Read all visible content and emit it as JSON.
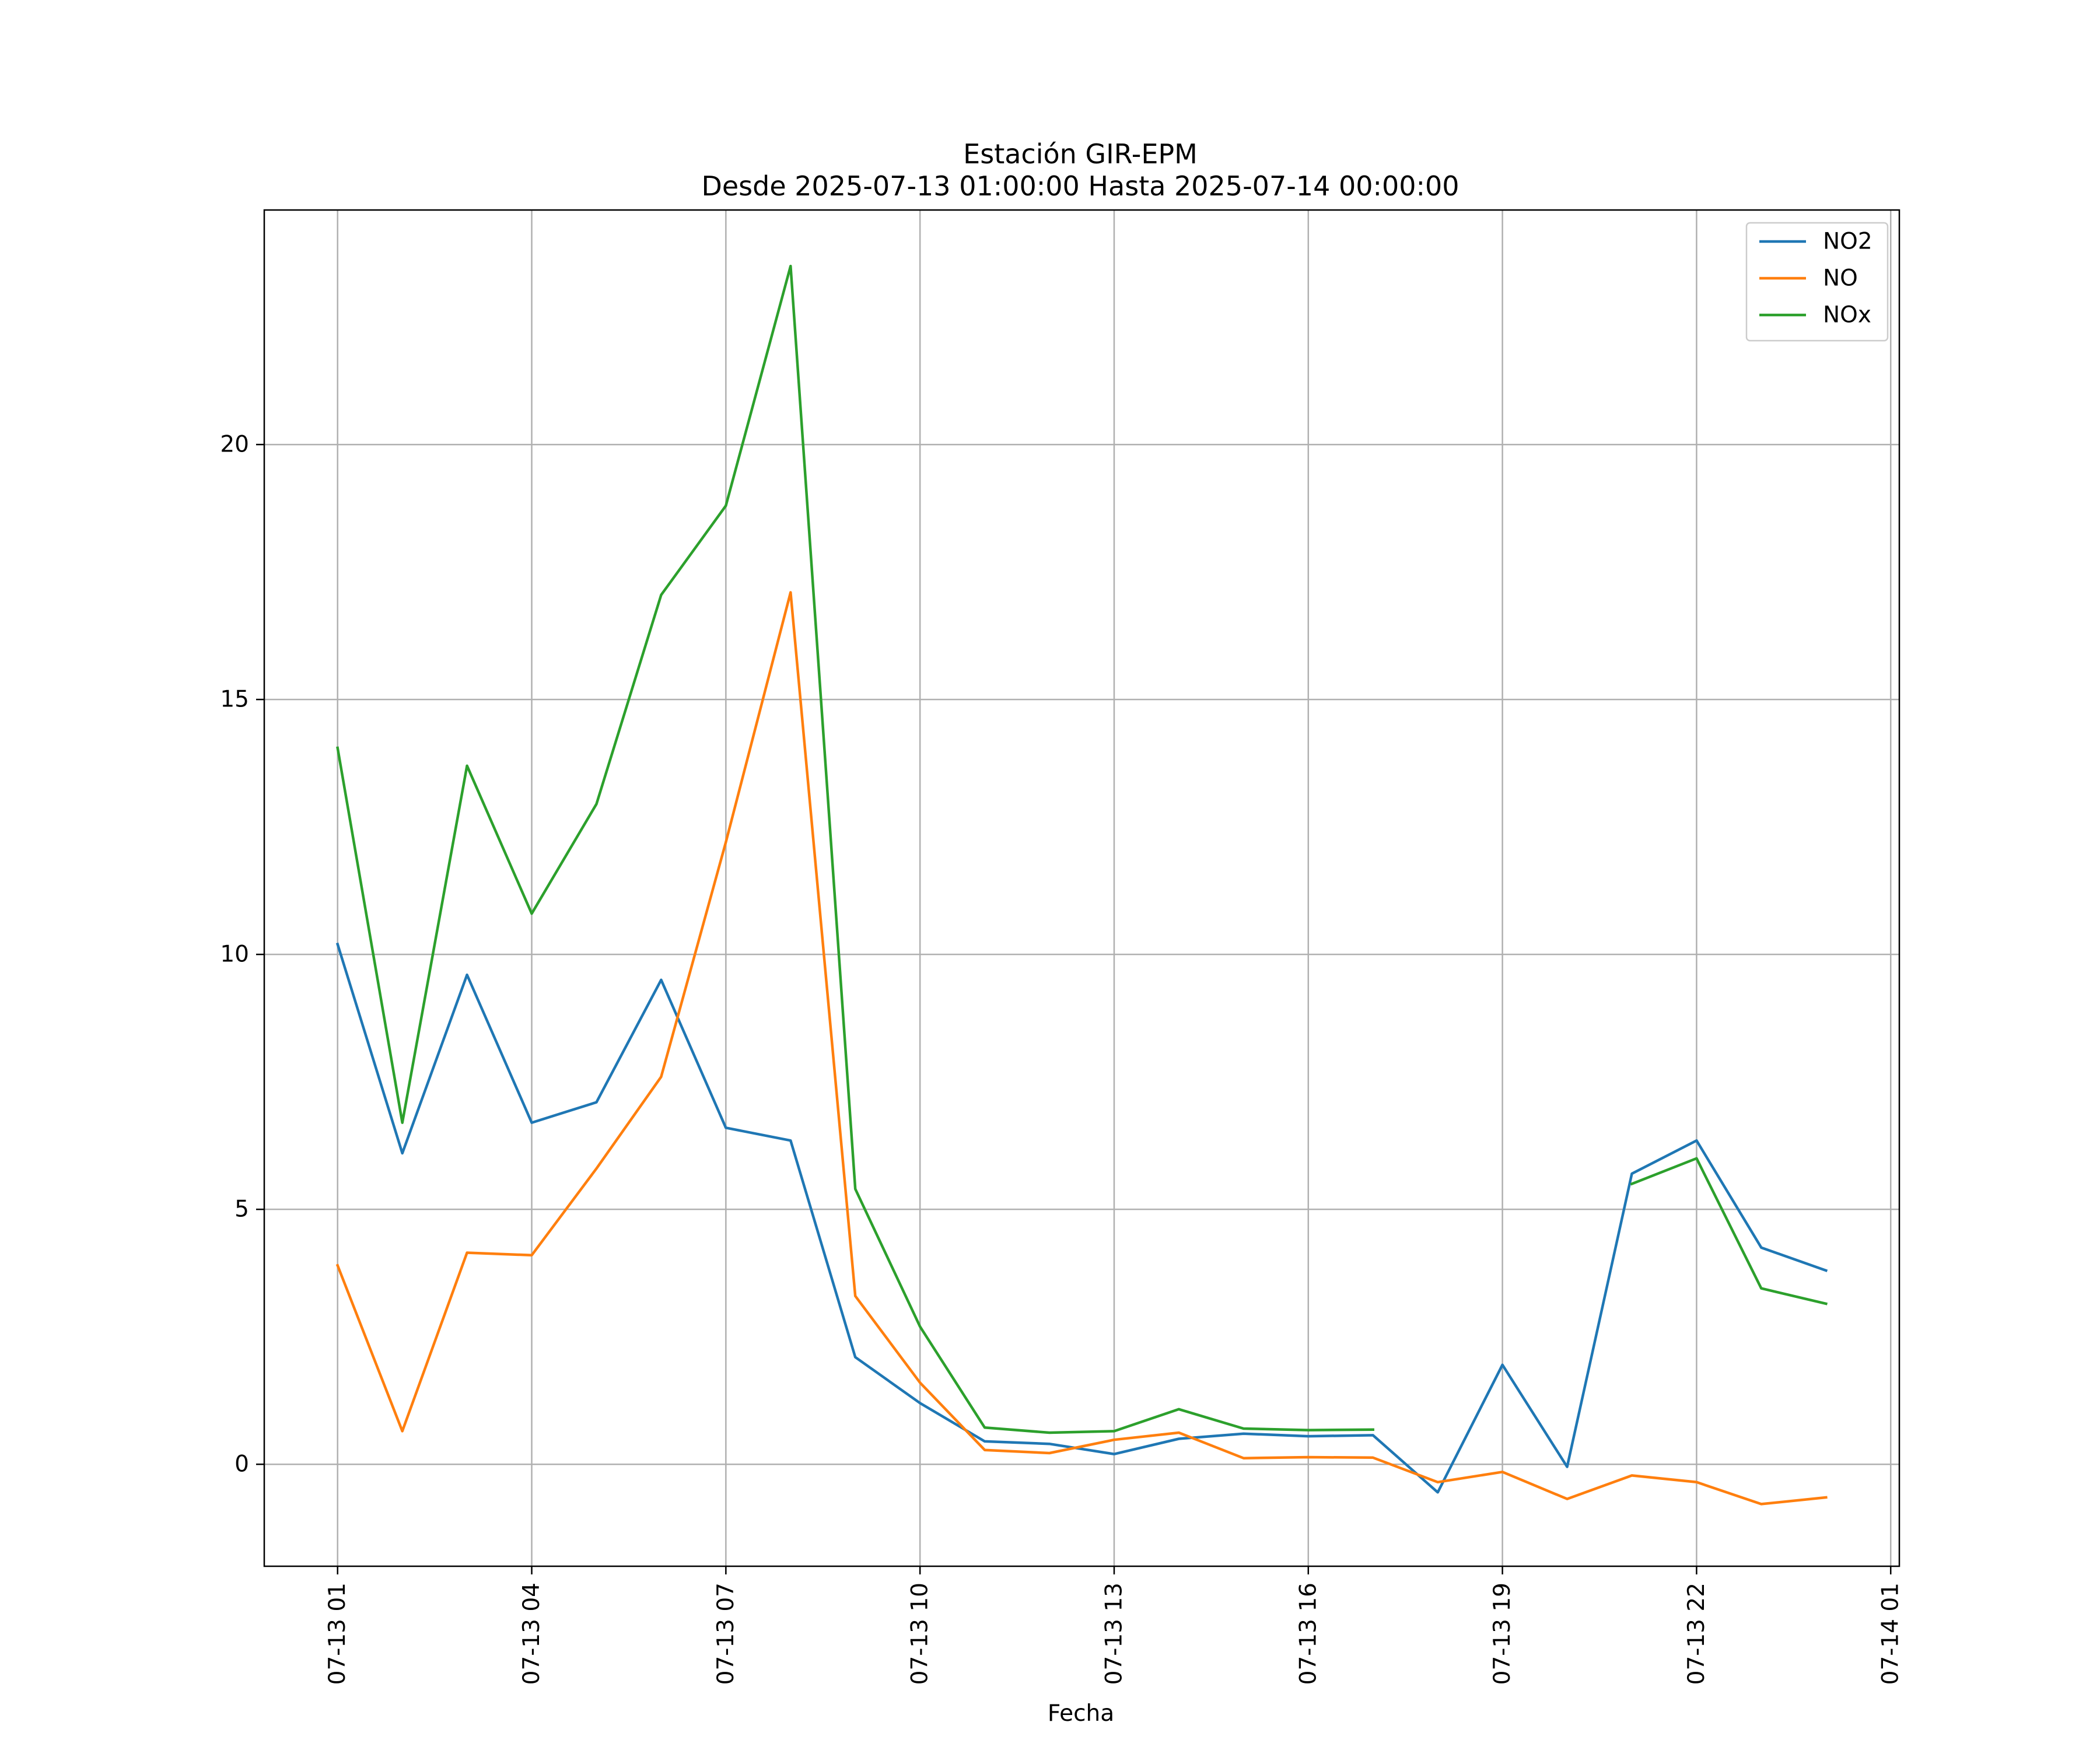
{
  "chart_data": {
    "type": "line",
    "title": "Estación GIR-EPM",
    "subtitle": "Desde 2025-07-13 01:00:00 Hasta 2025-07-14 00:00:00",
    "xlabel": "Fecha",
    "ylabel": "",
    "x": [
      "2025-07-13 01:00",
      "2025-07-13 02:00",
      "2025-07-13 03:00",
      "2025-07-13 04:00",
      "2025-07-13 05:00",
      "2025-07-13 06:00",
      "2025-07-13 07:00",
      "2025-07-13 08:00",
      "2025-07-13 09:00",
      "2025-07-13 10:00",
      "2025-07-13 11:00",
      "2025-07-13 12:00",
      "2025-07-13 13:00",
      "2025-07-13 14:00",
      "2025-07-13 15:00",
      "2025-07-13 16:00",
      "2025-07-13 17:00",
      "2025-07-13 18:00",
      "2025-07-13 19:00",
      "2025-07-13 20:00",
      "2025-07-13 21:00",
      "2025-07-13 22:00",
      "2025-07-13 23:00",
      "2025-07-14 00:00"
    ],
    "xlim": [
      "2025-07-12 23:52",
      "2025-07-14 01:08"
    ],
    "xticks": [
      "2025-07-13 01:00",
      "2025-07-13 04:00",
      "2025-07-13 07:00",
      "2025-07-13 10:00",
      "2025-07-13 13:00",
      "2025-07-13 16:00",
      "2025-07-13 19:00",
      "2025-07-13 22:00",
      "2025-07-14 01:00"
    ],
    "xtick_labels": [
      "07-13 01",
      "07-13 04",
      "07-13 07",
      "07-13 10",
      "07-13 13",
      "07-13 16",
      "07-13 19",
      "07-13 22",
      "07-14 01"
    ],
    "ylim": [
      -2,
      24.6
    ],
    "yticks": [
      0,
      5,
      10,
      15,
      20
    ],
    "ytick_labels": [
      "0",
      "5",
      "10",
      "15",
      "20"
    ],
    "grid": true,
    "legend_position": "top-right",
    "series": [
      {
        "name": "NO2",
        "color": "#1f77b4",
        "values": [
          10.2,
          6.1,
          9.6,
          6.7,
          7.1,
          9.5,
          6.6,
          6.35,
          2.1,
          1.2,
          0.45,
          0.4,
          0.2,
          0.5,
          0.6,
          0.55,
          0.57,
          -0.55,
          1.95,
          -0.05,
          5.7,
          6.35,
          4.25,
          3.8
        ]
      },
      {
        "name": "NO",
        "color": "#ff7f0e",
        "values": [
          3.9,
          0.65,
          4.15,
          4.1,
          5.8,
          7.6,
          12.2,
          17.1,
          3.3,
          1.6,
          0.28,
          0.22,
          0.48,
          0.62,
          0.12,
          0.14,
          0.13,
          -0.35,
          -0.15,
          -0.68,
          -0.22,
          -0.35,
          -0.78,
          -0.65
        ]
      },
      {
        "name": "NOx",
        "color": "#2ca02c",
        "values": [
          14.05,
          6.7,
          13.7,
          10.8,
          12.95,
          17.05,
          18.8,
          23.5,
          5.4,
          2.7,
          0.72,
          0.62,
          0.65,
          1.08,
          0.7,
          0.67,
          0.68,
          null,
          null,
          null,
          5.5,
          6.0,
          3.45,
          3.15
        ]
      }
    ]
  }
}
